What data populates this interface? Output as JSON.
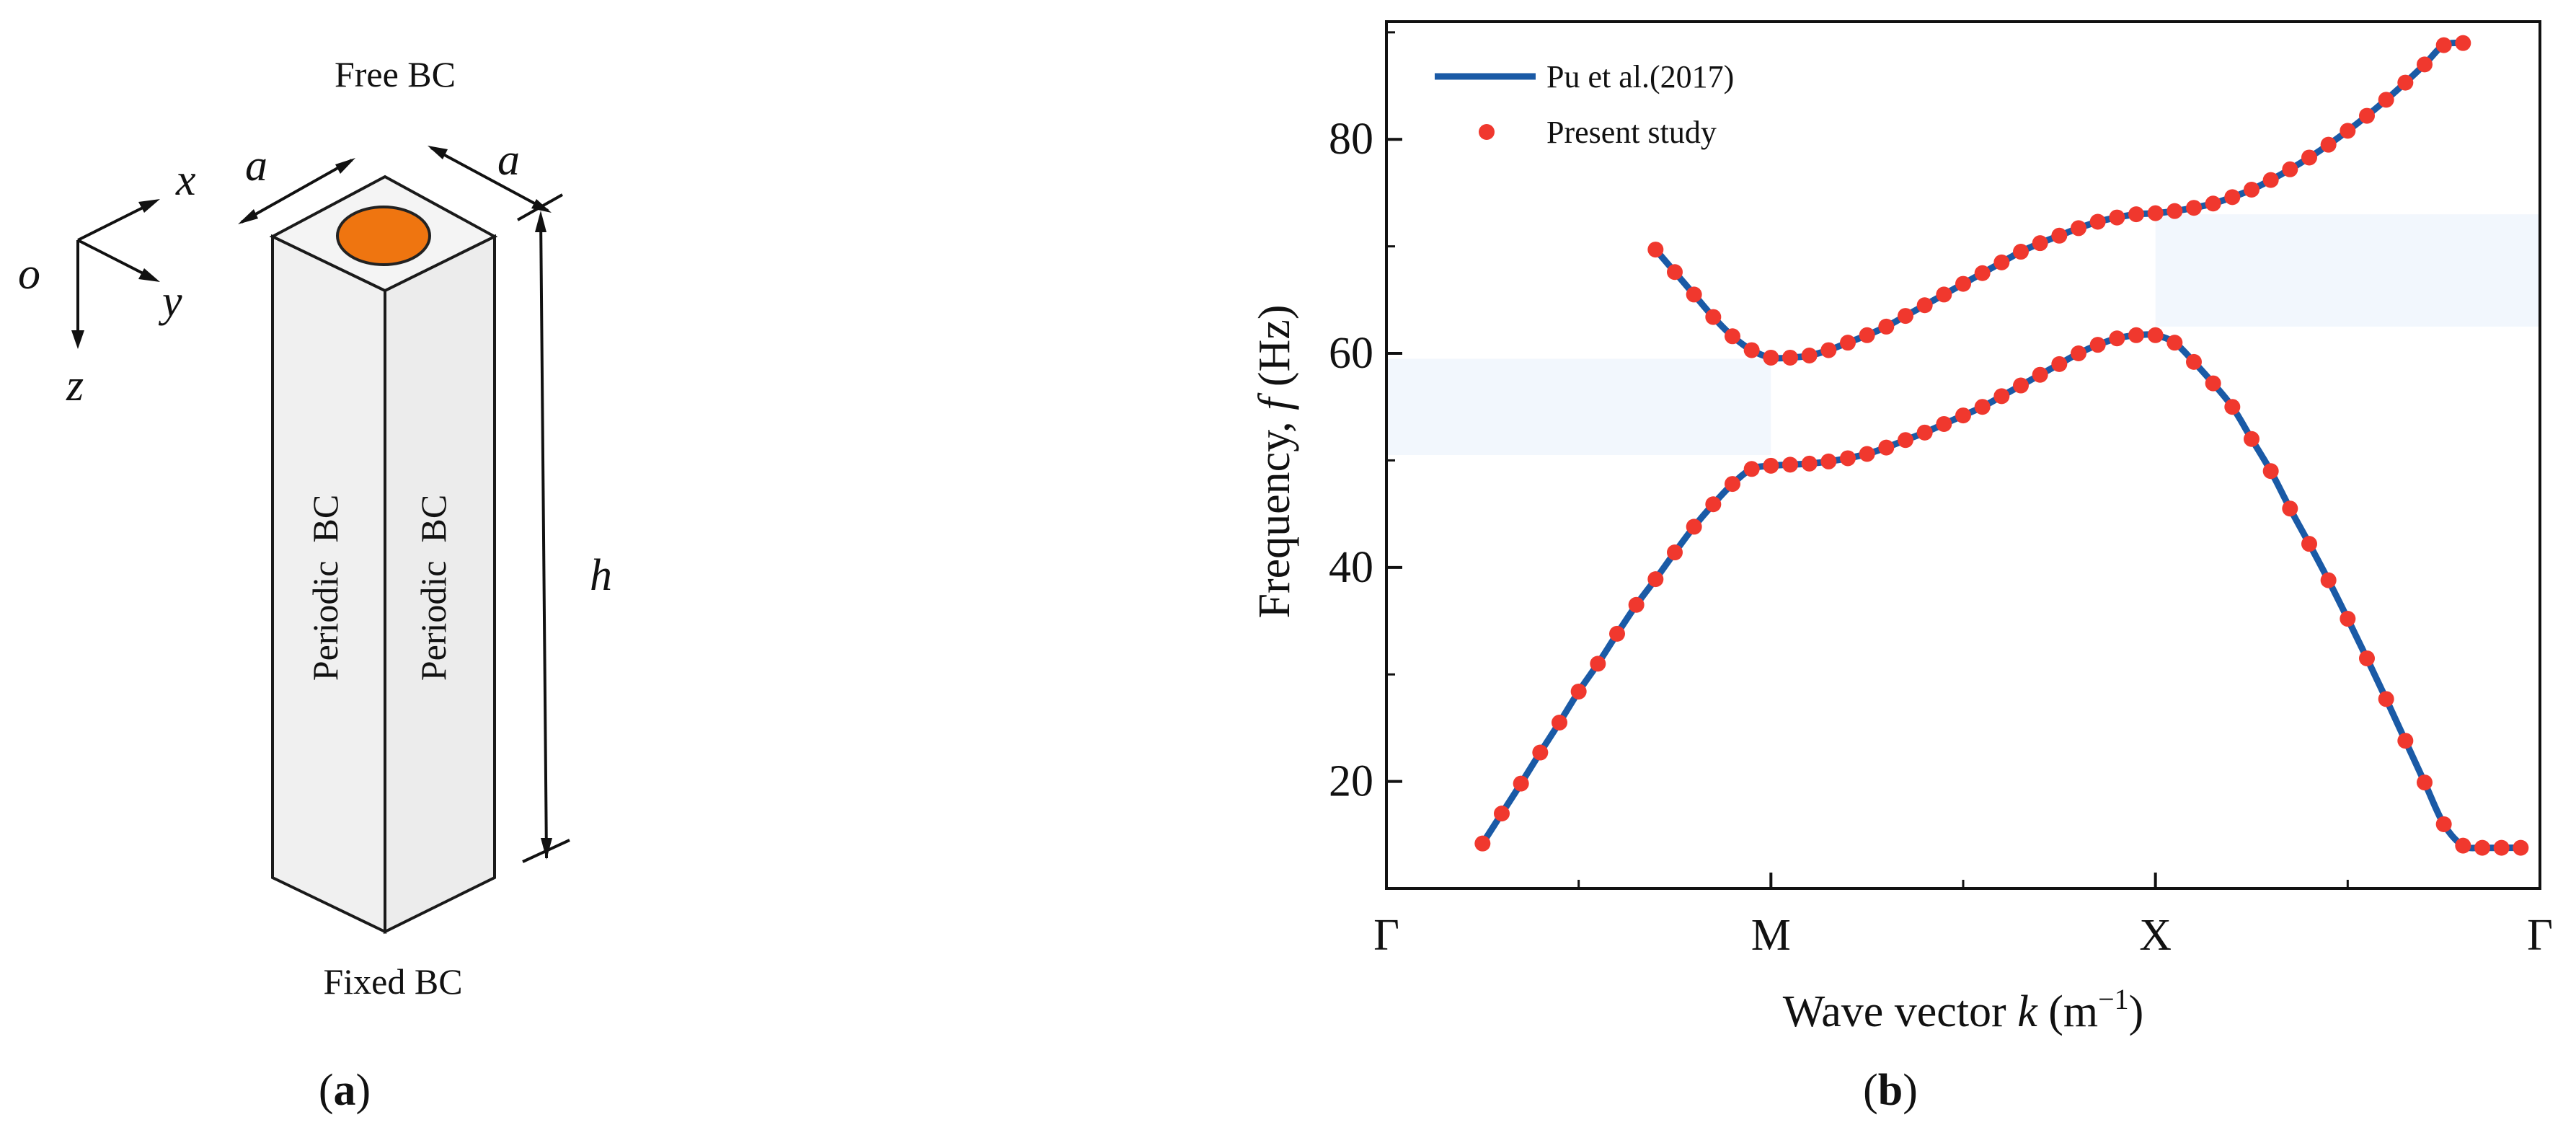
{
  "panel_a": {
    "top_label": "Free BC",
    "bottom_label": "Fixed BC",
    "side_label_left": "Periodic  BC",
    "side_label_right": "Periodic  BC",
    "dim_a": "a",
    "dim_h": "h",
    "axis_o": "o",
    "axis_x": "x",
    "axis_y": "y",
    "axis_z": "z",
    "caption_open": "(",
    "caption_letter": "a",
    "caption_close": ")",
    "colors": {
      "face": "#f0f0f0",
      "edge": "#1a1a1a",
      "inclusion": "#ef7510"
    }
  },
  "panel_b": {
    "caption_open": "(",
    "caption_letter": "b",
    "caption_close": ")",
    "ylabel_main": "Frequency, ",
    "ylabel_var": "f",
    "ylabel_unit": " (Hz)",
    "xlabel_main": "Wave vector ",
    "xlabel_var": "k",
    "xlabel_unit_open": " (m",
    "xlabel_unit_sup": "−1",
    "xlabel_unit_close": ")",
    "legend": {
      "line_label": "Pu et al.(2017)",
      "marker_label": "Present study"
    },
    "colors": {
      "line": "#1a5aa6",
      "marker": "#f0382e",
      "band_gap": "#e9f1fb"
    }
  },
  "chart_data": {
    "type": "line",
    "x_tick_labels": [
      "Γ",
      "M",
      "X",
      "Γ"
    ],
    "x_ticks": [
      0,
      1,
      2,
      3
    ],
    "xlim": [
      0,
      3
    ],
    "ylim": [
      10,
      91
    ],
    "y_ticks": [
      20,
      40,
      60,
      80
    ],
    "grid": false,
    "legend_position": "top-left",
    "series": [
      {
        "name": "Pu et al.(2017)",
        "style": "line",
        "branches": [
          {
            "x": [
              0.24,
              0.5,
              0.8,
              1.0,
              1.2,
              1.5,
              1.8,
              2.0,
              2.2,
              2.4,
              2.6,
              2.8,
              2.98
            ],
            "y": [
              12.7,
              23,
              40,
              49.3,
              50,
              54,
              59.5,
              62,
              59,
              48,
              35,
              22,
              14
            ]
          },
          {
            "x": [
              0.7,
              0.85,
              0.98,
              1.2,
              1.5,
              1.8,
              2.0,
              2.2,
              2.4,
              2.6,
              2.85
            ],
            "y": [
              70,
              65,
              60,
              60.3,
              64.5,
              70,
              73,
              74.2,
              77,
              81,
              90
            ]
          }
        ]
      },
      {
        "name": "Present study",
        "style": "marker",
        "branches": [
          {
            "x": [
              0.25,
              0.3,
              0.35,
              0.4,
              0.45,
              0.5,
              0.55,
              0.6,
              0.65,
              0.7,
              0.75,
              0.8,
              0.85,
              0.9,
              0.95,
              1.0,
              1.05,
              1.1,
              1.15,
              1.2,
              1.25,
              1.3,
              1.35,
              1.4,
              1.45,
              1.5,
              1.55,
              1.6,
              1.65,
              1.7,
              1.75,
              1.8,
              1.85,
              1.9,
              1.95,
              2.0,
              2.05,
              2.1,
              2.15,
              2.2,
              2.25,
              2.3,
              2.35,
              2.4,
              2.45,
              2.5,
              2.55,
              2.6,
              2.65,
              2.7,
              2.75,
              2.8,
              2.85,
              2.9,
              2.95
            ],
            "y": [
              14.2,
              17.0,
              19.8,
              22.7,
              25.5,
              28.4,
              31.0,
              33.8,
              36.5,
              38.9,
              41.4,
              43.8,
              45.9,
              47.8,
              49.2,
              49.5,
              49.6,
              49.7,
              49.9,
              50.2,
              50.6,
              51.2,
              51.9,
              52.6,
              53.4,
              54.2,
              55.0,
              56.0,
              57.0,
              58.0,
              59.0,
              60.0,
              60.8,
              61.4,
              61.7,
              61.7,
              61.0,
              59.2,
              57.2,
              55.0,
              52.0,
              49.0,
              45.5,
              42.2,
              38.8,
              35.2,
              31.5,
              27.7,
              23.8,
              19.9,
              16.0,
              14.0,
              13.8,
              13.8,
              13.8
            ]
          },
          {
            "x": [
              0.7,
              0.75,
              0.8,
              0.85,
              0.9,
              0.95,
              1.0,
              1.05,
              1.1,
              1.15,
              1.2,
              1.25,
              1.3,
              1.35,
              1.4,
              1.45,
              1.5,
              1.55,
              1.6,
              1.65,
              1.7,
              1.75,
              1.8,
              1.85,
              1.9,
              1.95,
              2.0,
              2.05,
              2.1,
              2.15,
              2.2,
              2.25,
              2.3,
              2.35,
              2.4,
              2.45,
              2.5,
              2.55,
              2.6,
              2.65,
              2.7,
              2.75,
              2.8
            ],
            "y": [
              69.7,
              67.6,
              65.5,
              63.4,
              61.6,
              60.3,
              59.6,
              59.6,
              59.8,
              60.3,
              61.0,
              61.7,
              62.5,
              63.5,
              64.5,
              65.5,
              66.5,
              67.5,
              68.5,
              69.5,
              70.3,
              71.0,
              71.7,
              72.3,
              72.7,
              73.0,
              73.1,
              73.3,
              73.6,
              74.0,
              74.6,
              75.3,
              76.2,
              77.2,
              78.3,
              79.5,
              80.8,
              82.2,
              83.7,
              85.3,
              87.0,
              88.8,
              89.0
            ]
          }
        ]
      }
    ],
    "band_gaps": [
      {
        "y_range": [
          50.5,
          59.5
        ],
        "x_range": [
          0.0,
          1.0
        ]
      },
      {
        "y_range": [
          62.5,
          73.0
        ],
        "x_range": [
          2.0,
          3.0
        ]
      }
    ]
  }
}
